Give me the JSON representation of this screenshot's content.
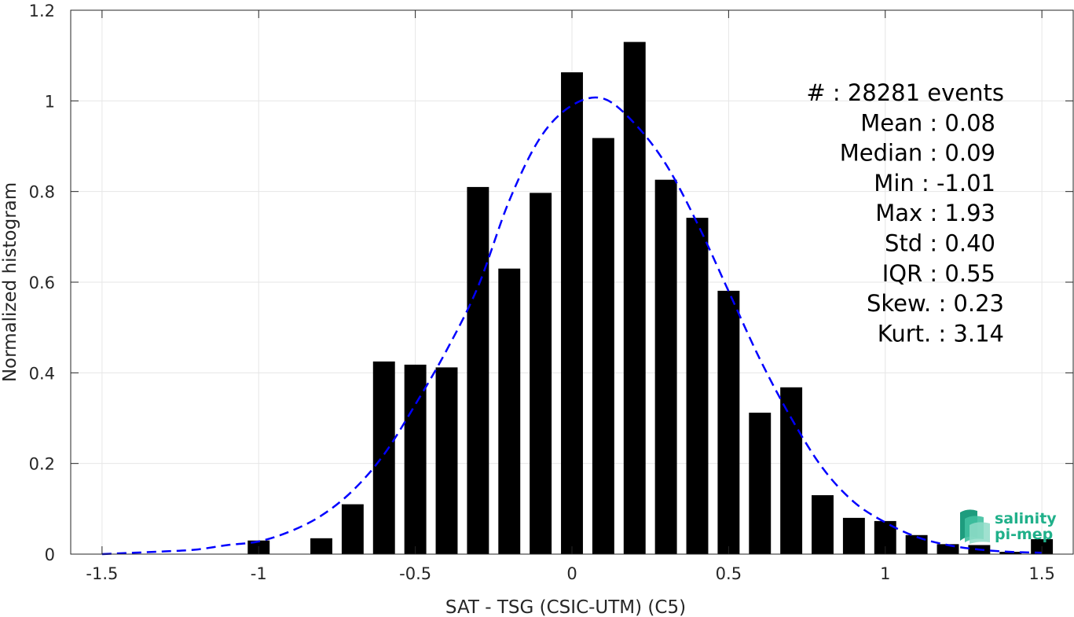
{
  "chart_data": {
    "type": "bar",
    "xlabel": "SAT - TSG (CSIC-UTM) (C5)",
    "ylabel": "Normalized histogram",
    "xlim": [
      -1.6,
      1.6
    ],
    "ylim": [
      0,
      1.2
    ],
    "xticks": [
      -1.5,
      -1,
      -0.5,
      0,
      0.5,
      1,
      1.5
    ],
    "xtick_labels": [
      "-1.5",
      "-1",
      "-0.5",
      "0",
      "0.5",
      "1",
      "1.5"
    ],
    "yticks": [
      0,
      0.2,
      0.4,
      0.6,
      0.8,
      1,
      1.2
    ],
    "ytick_labels": [
      "0",
      "0.2",
      "0.4",
      "0.6",
      "0.8",
      "1",
      "1.2"
    ],
    "grid": true,
    "bar_width": 0.07,
    "bars": {
      "x": [
        -1.0,
        -0.8,
        -0.7,
        -0.6,
        -0.5,
        -0.4,
        -0.3,
        -0.2,
        -0.1,
        0.0,
        0.1,
        0.2,
        0.3,
        0.4,
        0.5,
        0.6,
        0.7,
        0.8,
        0.9,
        1.0,
        1.1,
        1.2,
        1.3,
        1.4,
        1.5
      ],
      "values": [
        0.03,
        0.035,
        0.11,
        0.425,
        0.418,
        0.412,
        0.81,
        0.63,
        0.797,
        1.063,
        0.918,
        1.13,
        0.826,
        0.742,
        0.581,
        0.312,
        0.368,
        0.13,
        0.08,
        0.073,
        0.042,
        0.022,
        0.02,
        0.005,
        0.033
      ],
      "color": "#000000"
    },
    "fit_curve": {
      "style": "dashed",
      "color": "#0000ff",
      "x": [
        -1.5,
        -1.4,
        -1.3,
        -1.2,
        -1.1,
        -1.0,
        -0.9,
        -0.8,
        -0.7,
        -0.6,
        -0.5,
        -0.4,
        -0.3,
        -0.2,
        -0.1,
        0.0,
        0.1,
        0.2,
        0.3,
        0.4,
        0.5,
        0.6,
        0.7,
        0.8,
        0.9,
        1.0,
        1.1,
        1.2,
        1.3,
        1.4,
        1.5
      ],
      "y": [
        0.0,
        0.003,
        0.006,
        0.01,
        0.02,
        0.028,
        0.05,
        0.085,
        0.14,
        0.22,
        0.33,
        0.45,
        0.59,
        0.78,
        0.92,
        0.99,
        1.005,
        0.95,
        0.86,
        0.73,
        0.58,
        0.43,
        0.3,
        0.19,
        0.115,
        0.07,
        0.038,
        0.02,
        0.01,
        0.005,
        0.003
      ]
    },
    "annotations": [
      "#  : 28281 events",
      "Mean : 0.08",
      "Median : 0.09",
      "Min : -1.01",
      "Max : 1.93",
      "Std : 0.40",
      "IQR : 0.55",
      "Skew. : 0.23",
      "Kurt. : 3.14"
    ]
  },
  "logo": {
    "line1": "salinity",
    "line2": "pi-mep",
    "color": "#20b08a"
  }
}
